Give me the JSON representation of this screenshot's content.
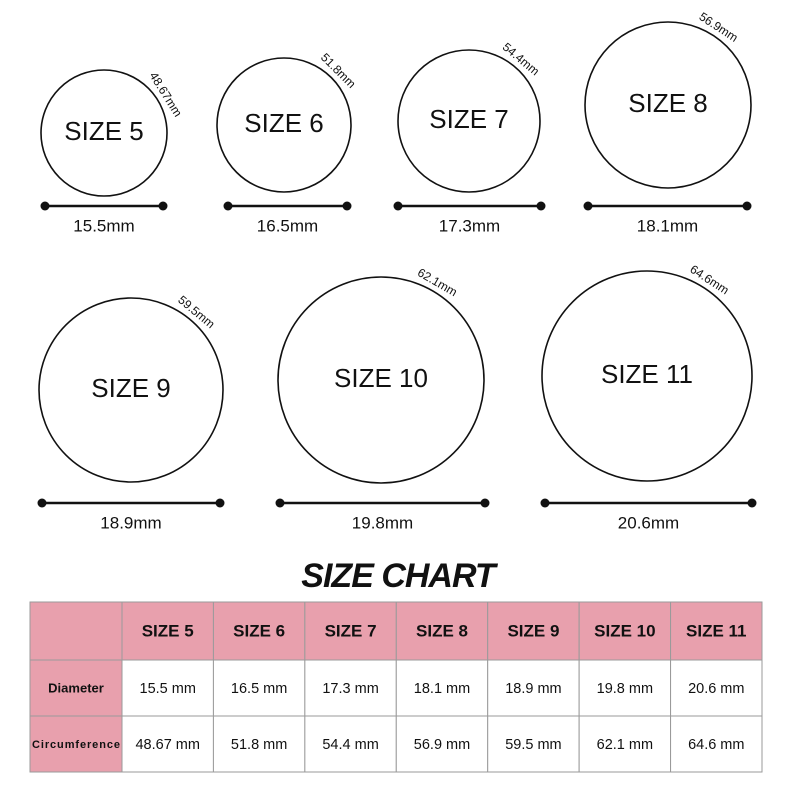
{
  "rings": [
    {
      "label": "SIZE 5",
      "circumference": "48.67mm",
      "diameter": "15.5mm"
    },
    {
      "label": "SIZE 6",
      "circumference": "51.8mm",
      "diameter": "16.5mm"
    },
    {
      "label": "SIZE 7",
      "circumference": "54.4mm",
      "diameter": "17.3mm"
    },
    {
      "label": "SIZE 8",
      "circumference": "56.9mm",
      "diameter": "18.1mm"
    },
    {
      "label": "SIZE 9",
      "circumference": "59.5mm",
      "diameter": "18.9mm"
    },
    {
      "label": "SIZE 10",
      "circumference": "62.1mm",
      "diameter": "19.8mm"
    },
    {
      "label": "SIZE 11",
      "circumference": "64.6mm",
      "diameter": "20.6mm"
    }
  ],
  "table": {
    "title": "SIZE CHART",
    "header": [
      "SIZE 5",
      "SIZE 6",
      "SIZE 7",
      "SIZE 8",
      "SIZE 9",
      "SIZE 10",
      "SIZE 11"
    ],
    "rows": [
      [
        "Diameter",
        "15.5 mm",
        "16.5 mm",
        "17.3 mm",
        "18.1 mm",
        "18.9 mm",
        "19.8 mm",
        "20.6 mm"
      ],
      [
        "Circumference",
        "48.67 mm",
        "51.8 mm",
        "54.4 mm",
        "56.9 mm",
        "59.5 mm",
        "62.1 mm",
        "64.6 mm"
      ]
    ]
  }
}
